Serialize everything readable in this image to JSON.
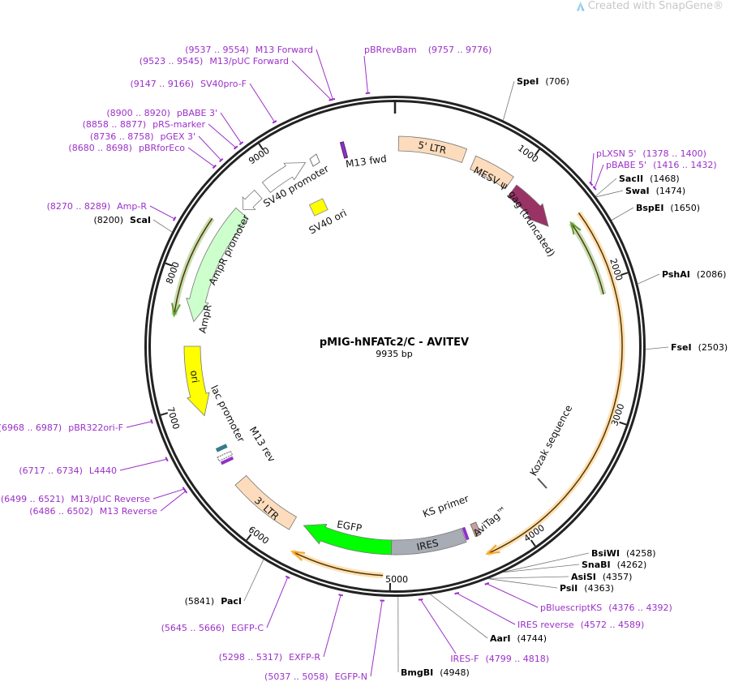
{
  "watermark": {
    "text": "Created with SnapGene®",
    "icon": "snapgene-logo-icon"
  },
  "plasmid": {
    "name": "pMIG-hNFATc2/C - AVITEV",
    "length": "9935 bp",
    "total_bp": 9935
  },
  "ticks": [
    "1000",
    "2000",
    "3000",
    "4000",
    "5000",
    "6000",
    "7000",
    "8000",
    "9000"
  ],
  "enzymes": [
    {
      "name": "SpeI",
      "pos": "(706)"
    },
    {
      "name": "SacII",
      "pos": "(1468)"
    },
    {
      "name": "SwaI",
      "pos": "(1474)"
    },
    {
      "name": "BspEI",
      "pos": "(1650)"
    },
    {
      "name": "PshAI",
      "pos": "(2086)"
    },
    {
      "name": "FseI",
      "pos": "(2503)"
    },
    {
      "name": "BsiWI",
      "pos": "(4258)"
    },
    {
      "name": "SnaBI",
      "pos": "(4262)"
    },
    {
      "name": "AsiSI",
      "pos": "(4357)"
    },
    {
      "name": "PsiI",
      "pos": "(4363)"
    },
    {
      "name": "AarI",
      "pos": "(4744)"
    },
    {
      "name": "BmgBI",
      "pos": "(4948)"
    },
    {
      "name": "PacI",
      "pos": "(5841)"
    },
    {
      "name": "ScaI",
      "pos": "(8200)"
    }
  ],
  "primers": [
    {
      "name": "pBRrevBam",
      "range": "(9757 .. 9776)"
    },
    {
      "name": "pLXSN 5'",
      "range": "(1378 .. 1400)"
    },
    {
      "name": "pBABE 5'",
      "range": "(1416 .. 1432)"
    },
    {
      "name": "pBluescriptKS",
      "range": "(4376 .. 4392)"
    },
    {
      "name": "IRES reverse",
      "range": "(4572 .. 4589)"
    },
    {
      "name": "IRES-F",
      "range": "(4799 .. 4818)"
    },
    {
      "name": "EGFP-N",
      "range": "(5037 .. 5058)"
    },
    {
      "name": "EXFP-R",
      "range": "(5298 .. 5317)"
    },
    {
      "name": "EGFP-C",
      "range": "(5645 .. 5666)"
    },
    {
      "name": "M13 Reverse",
      "range": "(6486 .. 6502)"
    },
    {
      "name": "M13/pUC Reverse",
      "range": "(6499 .. 6521)"
    },
    {
      "name": "L4440",
      "range": "(6717 .. 6734)"
    },
    {
      "name": "pBR322ori-F",
      "range": "(6968 .. 6987)"
    },
    {
      "name": "Amp-R",
      "range": "(8270 .. 8289)"
    },
    {
      "name": "pBRforEco",
      "range": "(8680 .. 8698)"
    },
    {
      "name": "pGEX 3'",
      "range": "(8736 .. 8758)"
    },
    {
      "name": "pRS-marker",
      "range": "(8858 .. 8877)"
    },
    {
      "name": "pBABE 3'",
      "range": "(8900 .. 8920)"
    },
    {
      "name": "SV40pro-F",
      "range": "(9147 .. 9166)"
    },
    {
      "name": "M13/pUC Forward",
      "range": "(9523 .. 9545)"
    },
    {
      "name": "M13 Forward",
      "range": "(9537 .. 9554)"
    }
  ],
  "features": [
    {
      "label": "5' LTR",
      "color": "#fcdcbc"
    },
    {
      "label": "MESV ψ",
      "color": "#fcdcbc"
    },
    {
      "label": "gag (truncated)",
      "color": "#993366"
    },
    {
      "label": "SV40 promoter",
      "color": "#ffffff"
    },
    {
      "label": "M13 fwd",
      "color": "#8f30c8"
    },
    {
      "label": "SV40 ori",
      "color": "#ffff00"
    },
    {
      "label": "AmpR promoter",
      "color": "#ffffff"
    },
    {
      "label": "AmpR",
      "color": "#ccffcc"
    },
    {
      "label": "ori",
      "color": "#ffff00"
    },
    {
      "label": "lac promoter",
      "color": "#ffffff"
    },
    {
      "label": "M13 rev",
      "color": "#8f30c8"
    },
    {
      "label": "3' LTR",
      "color": "#fcdcbc"
    },
    {
      "label": "EGFP",
      "color": "#00ff00"
    },
    {
      "label": "IRES",
      "color": "#a8adb5"
    },
    {
      "label": "KS primer",
      "color": "#8f30c8"
    },
    {
      "label": "AviTag™",
      "color": "#c8a0b4"
    },
    {
      "label": "Kozak sequence",
      "color": "#ffffff"
    }
  ],
  "colors": {
    "primer": "#9b30c8",
    "orf_orange": "#f5a623",
    "orf_green": "#4a8a1c",
    "backbone": "#222222"
  }
}
